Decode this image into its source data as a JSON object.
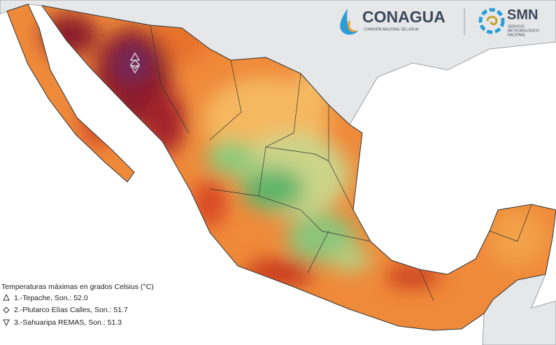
{
  "header": {
    "brand": "CONAGUA",
    "brand_subtitle": "COMISIÓN NACIONAL DEL AGUA",
    "agency": "SMN",
    "agency_subtitle": [
      "SERVICIO",
      "METEOROLÓGICO",
      "NACIONAL"
    ]
  },
  "legend": {
    "title": "Temperaturas máximas en grados Celsius (°C)",
    "entries": [
      "1.-Tepache, Son.: 52.0",
      "2.-Plutarco Elías Calles, Son.: 51.7",
      "3.-Sahuaripa REMAS, Son.: 51.3"
    ]
  }
}
